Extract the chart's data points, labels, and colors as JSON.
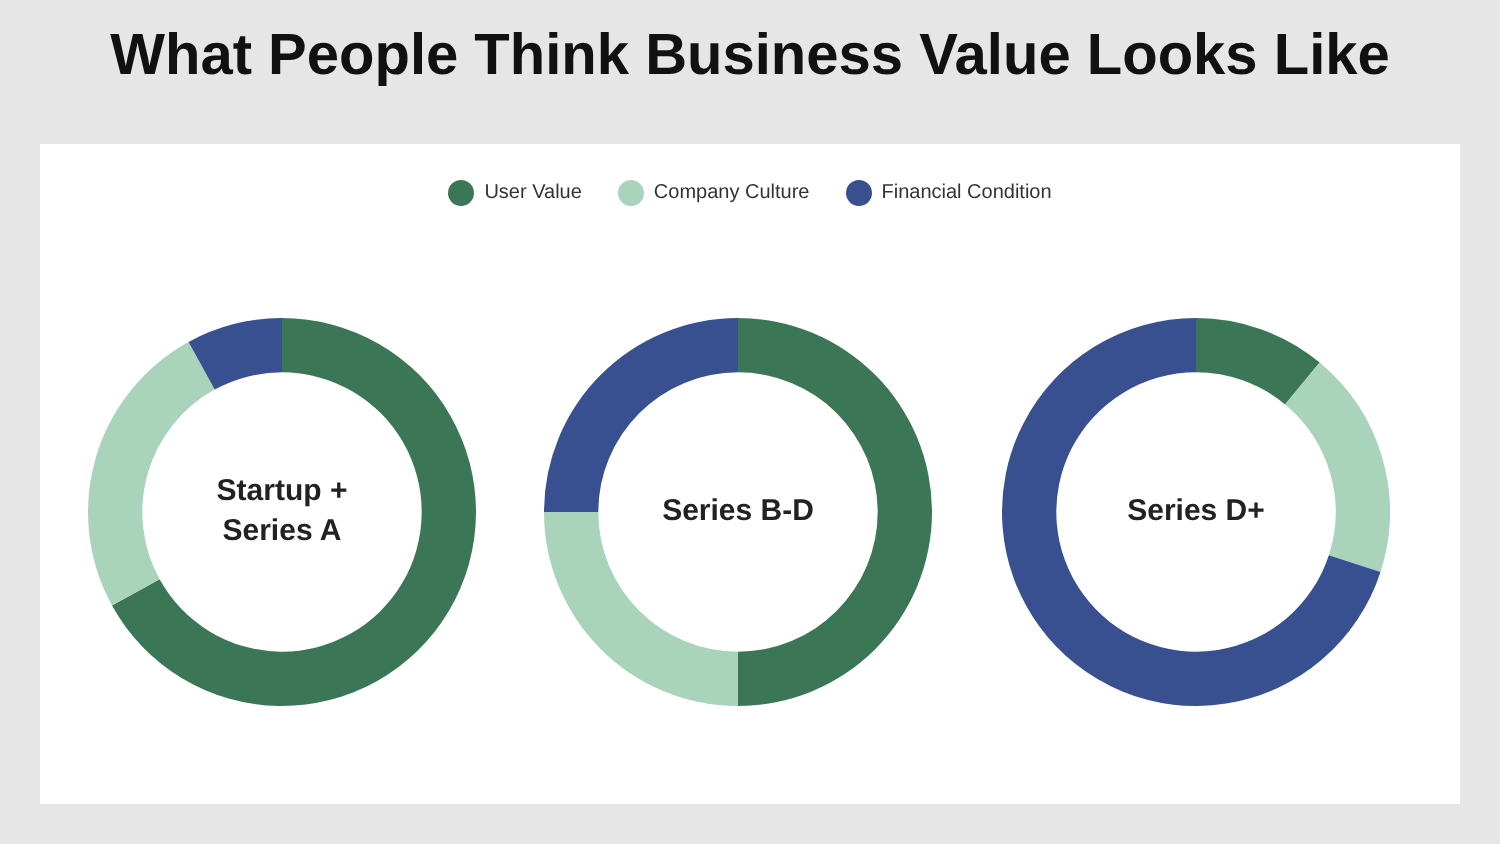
{
  "chart_data": [
    {
      "type": "donut",
      "title": "Startup + Series A",
      "categories": [
        "User Value",
        "Company Culture",
        "Financial Condition"
      ],
      "values": [
        67,
        25,
        8
      ],
      "colors": [
        "#3b7656",
        "#a9d3bb",
        "#384f90"
      ],
      "legend": "top",
      "annotations": [
        "What People Think Business Value Looks Like"
      ]
    },
    {
      "type": "donut",
      "title": "Series B-D",
      "categories": [
        null,
        null,
        null
      ],
      "values": [
        50,
        25,
        25
      ],
      "colors": [
        "#3b7656",
        "#a9d3bb",
        "#384f90"
      ]
    },
    {
      "type": "donut",
      "title": "Series D+",
      "categories": [
        null,
        null,
        null
      ],
      "values": [
        11,
        19,
        70
      ],
      "colors": [
        "#3b7656",
        "#a9d3bb",
        "#384f90"
      ]
    }
  ]
}
